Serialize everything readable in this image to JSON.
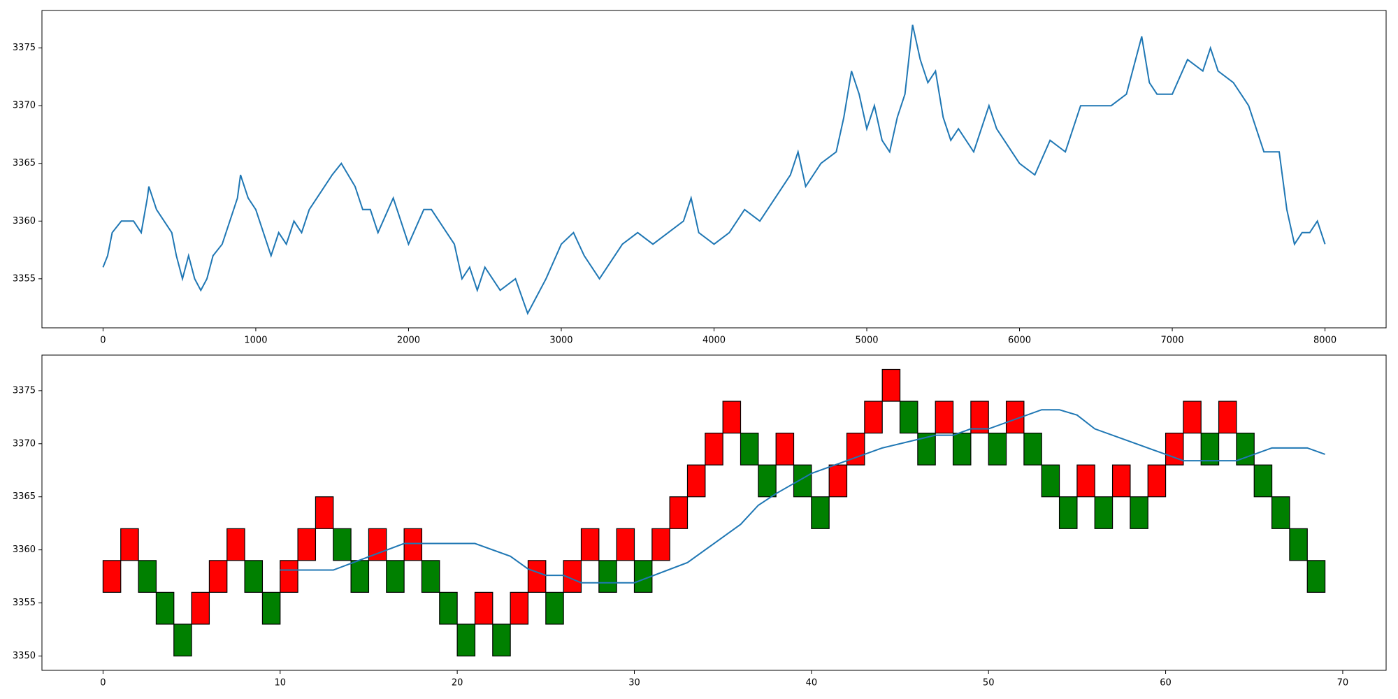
{
  "chart_data": [
    {
      "type": "line",
      "x": [
        0,
        30,
        60,
        120,
        200,
        250,
        290,
        300,
        350,
        400,
        450,
        480,
        520,
        560,
        600,
        640,
        680,
        720,
        780,
        830,
        880,
        900,
        950,
        1000,
        1050,
        1100,
        1150,
        1200,
        1250,
        1300,
        1350,
        1400,
        1500,
        1560,
        1650,
        1700,
        1750,
        1800,
        1900,
        2000,
        2100,
        2150,
        2200,
        2300,
        2350,
        2400,
        2450,
        2500,
        2600,
        2700,
        2780,
        2820,
        2900,
        3000,
        3080,
        3150,
        3250,
        3300,
        3400,
        3500,
        3600,
        3700,
        3800,
        3850,
        3900,
        4000,
        4100,
        4200,
        4300,
        4400,
        4500,
        4550,
        4600,
        4650,
        4700,
        4800,
        4850,
        4900,
        4950,
        5000,
        5050,
        5100,
        5150,
        5200,
        5250,
        5300,
        5350,
        5400,
        5450,
        5500,
        5550,
        5600,
        5700,
        5800,
        5850,
        5900,
        6000,
        6100,
        6200,
        6300,
        6400,
        6500,
        6600,
        6700,
        6800,
        6850,
        6900,
        7000,
        7100,
        7200,
        7250,
        7300,
        7400,
        7500,
        7600,
        7700,
        7750,
        7800,
        7850,
        7900,
        7950,
        8000
      ],
      "series": [
        {
          "color": "#1f77b4",
          "values": [
            3356,
            3357,
            3359,
            3360,
            3360,
            3359,
            3362,
            3363,
            3361,
            3360,
            3359,
            3357,
            3355,
            3357,
            3355,
            3354,
            3355,
            3357,
            3358,
            3360,
            3362,
            3364,
            3362,
            3361,
            3359,
            3357,
            3359,
            3358,
            3360,
            3359,
            3361,
            3362,
            3364,
            3365,
            3363,
            3361,
            3361,
            3359,
            3362,
            3358,
            3361,
            3361,
            3360,
            3358,
            3355,
            3356,
            3354,
            3356,
            3354,
            3355,
            3352,
            3353,
            3355,
            3358,
            3359,
            3357,
            3355,
            3356,
            3358,
            3359,
            3358,
            3359,
            3360,
            3362,
            3359,
            3358,
            3359,
            3361,
            3360,
            3362,
            3364,
            3366,
            3363,
            3364,
            3365,
            3366,
            3369,
            3373,
            3371,
            3368,
            3370,
            3367,
            3366,
            3369,
            3371,
            3377,
            3374,
            3372,
            3373,
            3369,
            3367,
            3368,
            3366,
            3370,
            3368,
            3367,
            3365,
            3364,
            3367,
            3366,
            3370,
            3370,
            3370,
            3371,
            3376,
            3372,
            3371,
            3371,
            3374,
            3373,
            3375,
            3373,
            3372,
            3370,
            3366,
            3366,
            3361,
            3358,
            3359,
            3359,
            3360,
            3358
          ]
        }
      ],
      "xlim": [
        -400,
        8400
      ],
      "ylim": [
        3350.75,
        3378.25
      ],
      "xticks": [
        0,
        1000,
        2000,
        3000,
        4000,
        5000,
        6000,
        7000,
        8000
      ],
      "yticks": [
        3355,
        3360,
        3365,
        3370,
        3375
      ]
    },
    {
      "type": "renko",
      "open": [
        3356,
        3359,
        3359,
        3356,
        3353,
        3353,
        3356,
        3359,
        3359,
        3356,
        3356,
        3359,
        3362,
        3362,
        3359,
        3359,
        3359,
        3359,
        3359,
        3356,
        3353,
        3353,
        3353,
        3353,
        3356,
        3356,
        3356,
        3359,
        3359,
        3359,
        3359,
        3359,
        3362,
        3365,
        3368,
        3371,
        3371,
        3368,
        3368,
        3368,
        3365,
        3365,
        3368,
        3371,
        3374,
        3374,
        3371,
        3371,
        3371,
        3371,
        3371,
        3371,
        3371,
        3368,
        3365,
        3365,
        3365,
        3365,
        3365,
        3365,
        3368,
        3371,
        3371,
        3371,
        3371,
        3368,
        3365,
        3362,
        3359
      ],
      "close": [
        3359,
        3362,
        3356,
        3353,
        3350,
        3356,
        3359,
        3362,
        3356,
        3353,
        3359,
        3362,
        3365,
        3359,
        3356,
        3362,
        3356,
        3362,
        3356,
        3353,
        3350,
        3356,
        3350,
        3356,
        3359,
        3353,
        3359,
        3362,
        3356,
        3362,
        3356,
        3362,
        3365,
        3368,
        3371,
        3374,
        3368,
        3365,
        3371,
        3365,
        3362,
        3368,
        3371,
        3374,
        3377,
        3371,
        3368,
        3374,
        3368,
        3374,
        3368,
        3374,
        3368,
        3365,
        3362,
        3368,
        3362,
        3368,
        3362,
        3368,
        3371,
        3374,
        3368,
        3374,
        3368,
        3365,
        3362,
        3359,
        3356
      ],
      "up_color": "#ff0000",
      "down_color": "#008000",
      "series": [
        {
          "color": "#1f77b4",
          "x": [
            10,
            13,
            17,
            21,
            23,
            24,
            25,
            26,
            27,
            30,
            33,
            36,
            37,
            38,
            40,
            44,
            47,
            48,
            49,
            50,
            53,
            54,
            55,
            56,
            60,
            61,
            64,
            66,
            68,
            69
          ],
          "values": [
            3358.1,
            3358.1,
            3360.6,
            3360.6,
            3359.4,
            3358.2,
            3357.6,
            3357.6,
            3356.9,
            3356.9,
            3358.8,
            3362.4,
            3364.2,
            3365.3,
            3367.2,
            3369.6,
            3370.8,
            3370.8,
            3371.4,
            3371.4,
            3373.2,
            3373.2,
            3372.7,
            3371.4,
            3369,
            3368.4,
            3368.4,
            3369.6,
            3369.6,
            3369
          ]
        }
      ],
      "xlim": [
        -3.45,
        72.45
      ],
      "ylim": [
        3348.65,
        3378.35
      ],
      "xticks": [
        0,
        10,
        20,
        30,
        40,
        50,
        60,
        70
      ],
      "yticks": [
        3350,
        3355,
        3360,
        3365,
        3370,
        3375
      ]
    }
  ]
}
